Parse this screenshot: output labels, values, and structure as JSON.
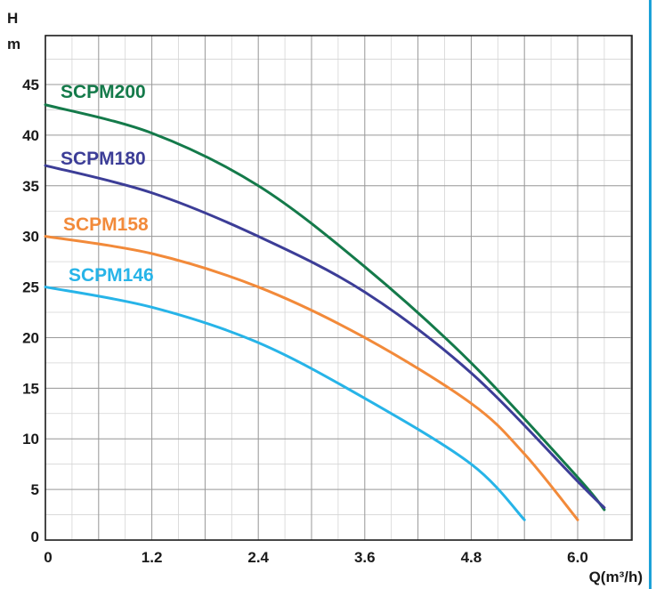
{
  "chart_data": {
    "type": "line",
    "ylabel_line1": "H",
    "ylabel_line2": "m",
    "xlabel": "Q(m³/h)",
    "xlim": [
      0,
      6.6
    ],
    "ylim": [
      0,
      50
    ],
    "x_ticks": [
      0,
      1.2,
      2.4,
      3.6,
      4.8,
      6.0
    ],
    "x_tick_labels": [
      "0",
      "1.2",
      "2.4",
      "3.6",
      "4.8",
      "6.0"
    ],
    "y_ticks": [
      0,
      5,
      10,
      15,
      20,
      25,
      30,
      35,
      40,
      45
    ],
    "y_tick_labels": [
      "0",
      "5",
      "10",
      "15",
      "20",
      "25",
      "30",
      "35",
      "40",
      "45"
    ],
    "x_minor_step": 0.3,
    "y_minor_step": 2.5,
    "grid": true,
    "series": [
      {
        "name": "SCPM200",
        "color": "#147a4a",
        "points": [
          [
            0,
            43
          ],
          [
            1.2,
            40.2
          ],
          [
            2.4,
            35
          ],
          [
            3.6,
            27
          ],
          [
            4.8,
            17.5
          ],
          [
            6.0,
            6.2
          ],
          [
            6.3,
            3
          ]
        ]
      },
      {
        "name": "SCPM180",
        "color": "#3c3d97",
        "points": [
          [
            0,
            37
          ],
          [
            1.2,
            34.3
          ],
          [
            2.4,
            30
          ],
          [
            3.6,
            24.5
          ],
          [
            4.8,
            16.5
          ],
          [
            6.0,
            5.8
          ],
          [
            6.3,
            3.2
          ]
        ]
      },
      {
        "name": "SCPM158",
        "color": "#f28a3a",
        "points": [
          [
            0,
            30
          ],
          [
            1.2,
            28.3
          ],
          [
            2.4,
            25
          ],
          [
            3.6,
            20
          ],
          [
            4.8,
            13.5
          ],
          [
            5.4,
            8.5
          ],
          [
            6.0,
            2
          ]
        ]
      },
      {
        "name": "SCPM146",
        "color": "#27b4e8",
        "points": [
          [
            0,
            25
          ],
          [
            1.2,
            23
          ],
          [
            2.4,
            19.5
          ],
          [
            3.6,
            14
          ],
          [
            4.8,
            7.5
          ],
          [
            5.4,
            2
          ]
        ]
      }
    ]
  }
}
